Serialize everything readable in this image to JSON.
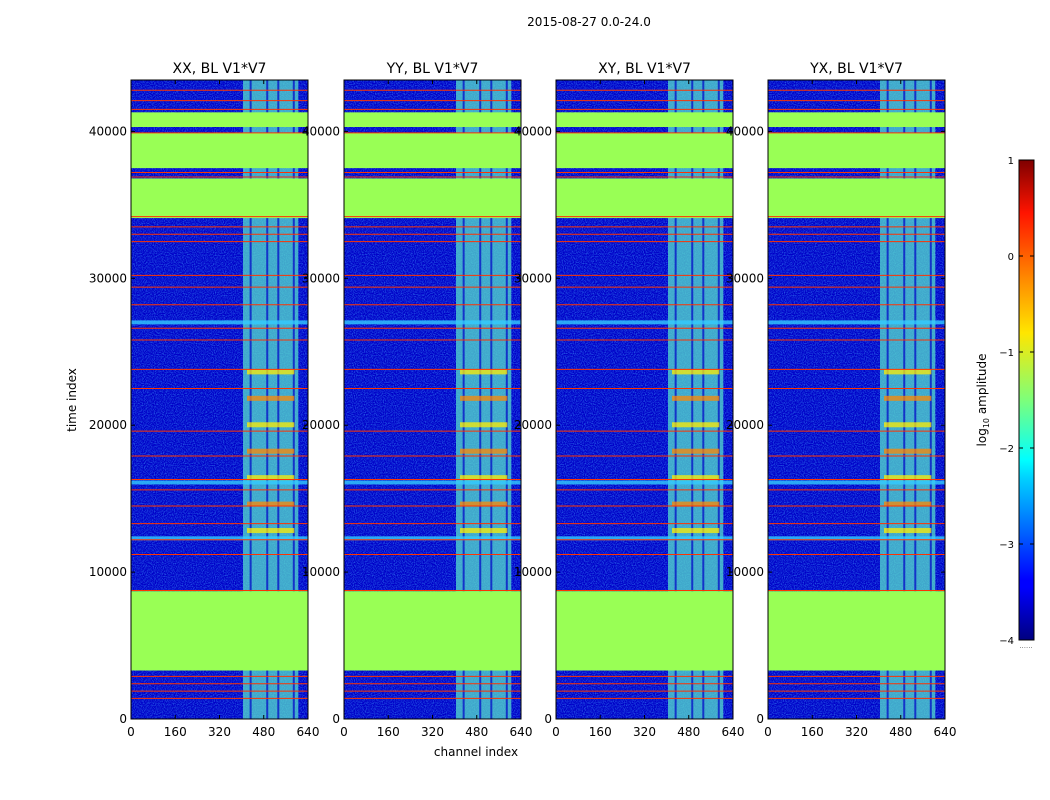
{
  "figure_title": "2015-08-27 0.0-24.0",
  "colors": {
    "background_low": "#0000c8",
    "mask_flag": "#99ff55",
    "flag_line": "#ff3300",
    "stripe_cyan": "#33ccff",
    "stripe_yellow": "#ffee00",
    "stripe_orange": "#ff8800"
  },
  "chart_data": [
    {
      "type": "heatmap",
      "title": "XX, BL V1*V7",
      "xlabel": "",
      "ylabel": "time index",
      "xlim": [
        0,
        640
      ],
      "ylim": [
        0,
        43500
      ],
      "xticks": [
        "0",
        "160",
        "320",
        "480",
        "640"
      ],
      "yticks": [
        "0",
        "10000",
        "20000",
        "30000",
        "40000"
      ],
      "colormap": "jet",
      "color_range": [
        -4,
        1
      ],
      "active_channels": [
        405,
        605
      ]
    },
    {
      "type": "heatmap",
      "title": "YY, BL V1*V7",
      "xlabel": "channel index",
      "ylabel": "",
      "xlim": [
        0,
        640
      ],
      "ylim": [
        0,
        43500
      ],
      "xticks": [
        "0",
        "160",
        "320",
        "480",
        "640"
      ],
      "yticks": [
        "0",
        "10000",
        "20000",
        "30000",
        "40000"
      ],
      "colormap": "jet",
      "color_range": [
        -4,
        1
      ],
      "active_channels": [
        405,
        605
      ]
    },
    {
      "type": "heatmap",
      "title": "XY, BL V1*V7",
      "xlabel": "",
      "ylabel": "",
      "xlim": [
        0,
        640
      ],
      "ylim": [
        0,
        43500
      ],
      "xticks": [
        "0",
        "160",
        "320",
        "480",
        "640"
      ],
      "yticks": [
        "0",
        "10000",
        "20000",
        "30000",
        "40000"
      ],
      "colormap": "jet",
      "color_range": [
        -4,
        1
      ],
      "active_channels": [
        405,
        605
      ]
    },
    {
      "type": "heatmap",
      "title": "YX, BL V1*V7",
      "xlabel": "",
      "ylabel": "",
      "xlim": [
        0,
        640
      ],
      "ylim": [
        0,
        43500
      ],
      "xticks": [
        "0",
        "160",
        "320",
        "480",
        "640"
      ],
      "yticks": [
        "0",
        "10000",
        "20000",
        "30000",
        "40000"
      ],
      "colormap": "jet",
      "color_range": [
        -4,
        1
      ],
      "active_channels": [
        405,
        605
      ]
    }
  ],
  "flagged_time_ranges": [
    [
      3300,
      8700
    ],
    [
      34100,
      36800
    ],
    [
      37500,
      39900
    ],
    [
      40300,
      41300
    ]
  ],
  "flag_lines_time": [
    1400,
    1900,
    2400,
    2900,
    8750,
    11200,
    12200,
    13300,
    14500,
    15600,
    16300,
    17900,
    19600,
    22500,
    23800,
    25800,
    26600,
    28200,
    29400,
    30200,
    32500,
    33000,
    33500,
    34200,
    36900,
    37200,
    39900,
    41500,
    42100,
    42800
  ],
  "colorbar": {
    "label": "log10 amplitude",
    "label_text": "log",
    "label_sub": "10",
    "label_rest": " amplitude",
    "ticks": [
      "1",
      "0",
      "−1",
      "−2",
      "−3",
      "−4"
    ],
    "tick_values": [
      1,
      0,
      -1,
      -2,
      -3,
      -4
    ],
    "range": [
      -4,
      1
    ],
    "extra_mark": "......"
  }
}
